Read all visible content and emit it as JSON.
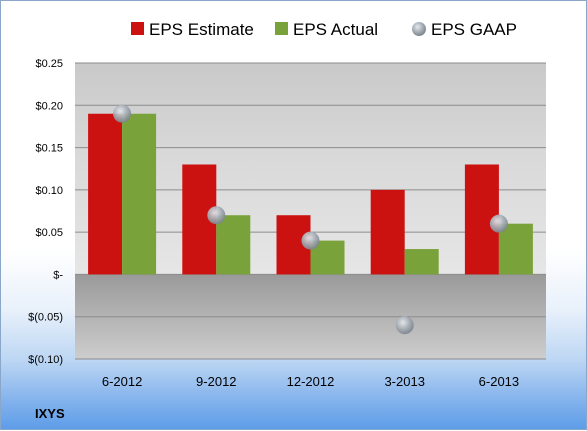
{
  "chart_data": {
    "type": "bar",
    "categories": [
      "6-2012",
      "9-2012",
      "12-2012",
      "3-2013",
      "6-2013"
    ],
    "series": [
      {
        "name": "EPS Estimate",
        "values": [
          0.19,
          0.13,
          0.07,
          0.1,
          0.13
        ],
        "color": "#cc1111"
      },
      {
        "name": "EPS Actual",
        "values": [
          0.19,
          0.07,
          0.04,
          0.03,
          0.06
        ],
        "color": "#7aa23a"
      },
      {
        "name": "EPS GAAP",
        "type": "scatter",
        "values": [
          0.19,
          0.07,
          0.04,
          -0.06,
          0.06
        ],
        "color": "#9aa4ae"
      }
    ],
    "ylim": [
      -0.1,
      0.25
    ],
    "yticks": [
      0.25,
      0.2,
      0.15,
      0.1,
      0.05,
      0.0,
      -0.05,
      -0.1
    ],
    "ytick_labels": [
      "$0.25",
      "$0.20",
      "$0.15",
      "$0.10",
      "$0.05",
      "$-",
      "$(0.05)",
      "$(0.10)"
    ],
    "legend_position": "top",
    "grid": true,
    "title": "",
    "xlabel": "",
    "ylabel": ""
  },
  "footer": {
    "ticker": "IXYS"
  }
}
